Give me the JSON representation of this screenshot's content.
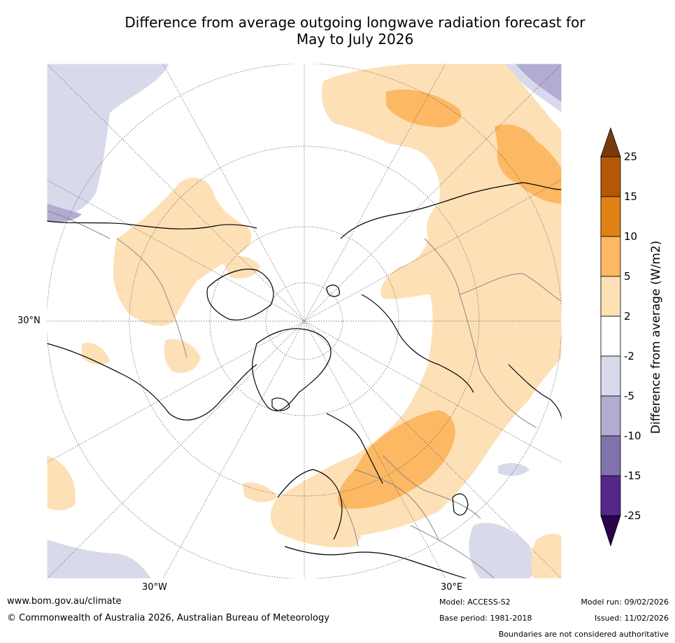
{
  "title_line1": "Difference from average outgoing longwave radiation forecast for",
  "title_line2": "May to July 2026",
  "labels": {
    "lat30": "30°N",
    "lon_w": "30°W",
    "lon_e": "30°E"
  },
  "colorbar": {
    "label": "Difference from average (W/m2)",
    "ticks": [
      "25",
      "15",
      "10",
      "5",
      "2",
      "-2",
      "-5",
      "-10",
      "-15",
      "-25"
    ],
    "colors": [
      "#7a3a0c",
      "#b35806",
      "#e08214",
      "#fdb863",
      "#fee0b6",
      "#ffffff",
      "#d8daeb",
      "#b2abd2",
      "#8073ac",
      "#542788",
      "#2d004b"
    ]
  },
  "footer": {
    "url": "www.bom.gov.au/climate",
    "copyright": "© Commonwealth of Australia 2026, Australian Bureau of Meteorology",
    "model": "Model: ACCESS-S2",
    "base_period": "Base period: 1981-2018",
    "model_run": "Model run: 09/02/2026",
    "issued": "Issued: 11/02/2026",
    "disclaimer": "Boundaries are not considered authoritative"
  }
}
